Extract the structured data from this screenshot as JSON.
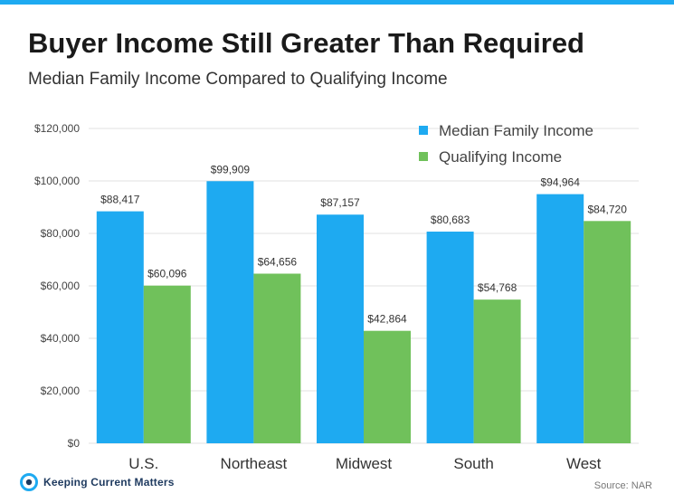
{
  "header": {
    "title": "Buyer Income Still Greater Than Required",
    "subtitle": "Median Family Income Compared to Qualifying Income"
  },
  "footer": {
    "logo_text": "Keeping Current Matters",
    "source": "Source: NAR"
  },
  "colors": {
    "accent_bar": "#1eaaf1",
    "median": "#1eaaf1",
    "qualifying": "#70c15b"
  },
  "chart_data": {
    "type": "bar",
    "title": "Buyer Income Still Greater Than Required",
    "subtitle": "Median Family Income Compared to Qualifying Income",
    "categories": [
      "U.S.",
      "Northeast",
      "Midwest",
      "South",
      "West"
    ],
    "series": [
      {
        "name": "Median Family Income",
        "color": "#1eaaf1",
        "values": [
          88417,
          99909,
          87157,
          80683,
          94964
        ],
        "labels": [
          "$88,417",
          "$99,909",
          "$87,157",
          "$80,683",
          "$94,964"
        ]
      },
      {
        "name": "Qualifying Income",
        "color": "#70c15b",
        "values": [
          60096,
          64656,
          42864,
          54768,
          84720
        ],
        "labels": [
          "$60,096",
          "$64,656",
          "$42,864",
          "$54,768",
          "$84,720"
        ]
      }
    ],
    "ylim": [
      0,
      120000
    ],
    "yticks": [
      0,
      20000,
      40000,
      60000,
      80000,
      100000,
      120000
    ],
    "ytick_labels": [
      "$0",
      "$20,000",
      "$40,000",
      "$60,000",
      "$80,000",
      "$100,000",
      "$120,000"
    ],
    "grid": true,
    "legend_position": "top-right",
    "xlabel": "",
    "ylabel": ""
  }
}
